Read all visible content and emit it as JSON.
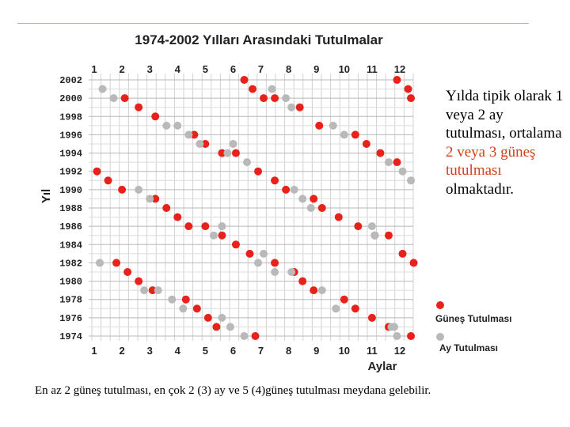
{
  "chart_data": {
    "type": "scatter",
    "title": "1974-2002 Yılları Arasındaki Tutulmalar",
    "xlabel": "Aylar",
    "ylabel": "Yıl",
    "x_ticks": [
      "1",
      "2",
      "3",
      "4",
      "5",
      "6",
      "7",
      "8",
      "9",
      "10",
      "11",
      "12"
    ],
    "y_ticks": [
      "2002",
      "2000",
      "1998",
      "1996",
      "1994",
      "1992",
      "1990",
      "1988",
      "1986",
      "1984",
      "1982",
      "1980",
      "1978",
      "1976",
      "1974"
    ],
    "xlim": [
      1,
      12.5
    ],
    "ylim": [
      1974,
      2002
    ],
    "grid": true,
    "legend_position": "bottom-right",
    "series": [
      {
        "name": "Güneş Tutulması",
        "color": "#e8221b",
        "points": [
          [
            6.4,
            2002
          ],
          [
            11.9,
            2002
          ],
          [
            6.7,
            2001
          ],
          [
            12.3,
            2001
          ],
          [
            7.1,
            2000
          ],
          [
            12.4,
            2000
          ],
          [
            7.5,
            2000
          ],
          [
            2.1,
            2000
          ],
          [
            2.6,
            1999
          ],
          [
            8.4,
            1999
          ],
          [
            3.2,
            1998
          ],
          [
            9.1,
            1997
          ],
          [
            4.6,
            1996
          ],
          [
            10.4,
            1996
          ],
          [
            5.0,
            1995
          ],
          [
            10.8,
            1995
          ],
          [
            5.6,
            1994
          ],
          [
            11.3,
            1994
          ],
          [
            6.1,
            1994
          ],
          [
            11.9,
            1993
          ],
          [
            1.1,
            1992
          ],
          [
            6.9,
            1992
          ],
          [
            1.5,
            1991
          ],
          [
            7.5,
            1991
          ],
          [
            2.0,
            1990
          ],
          [
            7.9,
            1990
          ],
          [
            3.2,
            1989
          ],
          [
            8.9,
            1989
          ],
          [
            3.6,
            1988
          ],
          [
            9.2,
            1988
          ],
          [
            4.0,
            1987
          ],
          [
            9.8,
            1987
          ],
          [
            4.4,
            1986
          ],
          [
            10.5,
            1986
          ],
          [
            5.0,
            1986
          ],
          [
            11.1,
            1985
          ],
          [
            5.6,
            1985
          ],
          [
            11.6,
            1985
          ],
          [
            6.1,
            1984
          ],
          [
            12.1,
            1983
          ],
          [
            6.6,
            1983
          ],
          [
            12.5,
            1982
          ],
          [
            1.8,
            1982
          ],
          [
            7.5,
            1982
          ],
          [
            2.2,
            1981
          ],
          [
            8.2,
            1981
          ],
          [
            2.6,
            1980
          ],
          [
            8.5,
            1980
          ],
          [
            3.1,
            1979
          ],
          [
            8.9,
            1979
          ],
          [
            4.3,
            1978
          ],
          [
            10.0,
            1978
          ],
          [
            4.7,
            1977
          ],
          [
            10.4,
            1977
          ],
          [
            5.1,
            1976
          ],
          [
            11.0,
            1976
          ],
          [
            5.4,
            1975
          ],
          [
            11.6,
            1975
          ],
          [
            6.8,
            1974
          ],
          [
            12.4,
            1974
          ]
        ]
      },
      {
        "name": "Ay Tutulması",
        "color": "#b9b9b9",
        "points": [
          [
            1.3,
            2001
          ],
          [
            1.7,
            2000
          ],
          [
            7.4,
            2001
          ],
          [
            7.9,
            2000
          ],
          [
            8.1,
            1999
          ],
          [
            3.6,
            1997
          ],
          [
            4.0,
            1997
          ],
          [
            9.6,
            1997
          ],
          [
            10.0,
            1996
          ],
          [
            4.4,
            1996
          ],
          [
            4.8,
            1995
          ],
          [
            6.0,
            1995
          ],
          [
            5.8,
            1994
          ],
          [
            11.6,
            1993
          ],
          [
            6.5,
            1993
          ],
          [
            12.1,
            1992
          ],
          [
            12.4,
            1991
          ],
          [
            2.6,
            1990
          ],
          [
            8.2,
            1990
          ],
          [
            3.0,
            1989
          ],
          [
            8.5,
            1989
          ],
          [
            8.8,
            1988
          ],
          [
            5.6,
            1986
          ],
          [
            11.0,
            1986
          ],
          [
            5.3,
            1985
          ],
          [
            11.1,
            1985
          ],
          [
            7.1,
            1983
          ],
          [
            6.9,
            1982
          ],
          [
            1.2,
            1982
          ],
          [
            7.5,
            1981
          ],
          [
            8.1,
            1981
          ],
          [
            2.8,
            1979
          ],
          [
            3.3,
            1979
          ],
          [
            9.2,
            1979
          ],
          [
            3.8,
            1978
          ],
          [
            4.2,
            1977
          ],
          [
            9.7,
            1977
          ],
          [
            5.6,
            1976
          ],
          [
            5.9,
            1975
          ],
          [
            11.7,
            1975
          ],
          [
            11.8,
            1975
          ],
          [
            6.4,
            1974
          ],
          [
            11.9,
            1974
          ]
        ]
      }
    ]
  },
  "side_text": {
    "line1": "Yılda tipik olarak 1 veya 2 ay tutulması, ortalama ",
    "highlight": "2 veya 3 güneş tutulması",
    "line2": " olmaktadır."
  },
  "caption": "En az 2 güneş tutulması, en çok 2 (3) ay ve 5 (4)güneş tutulması meydana gelebilir."
}
